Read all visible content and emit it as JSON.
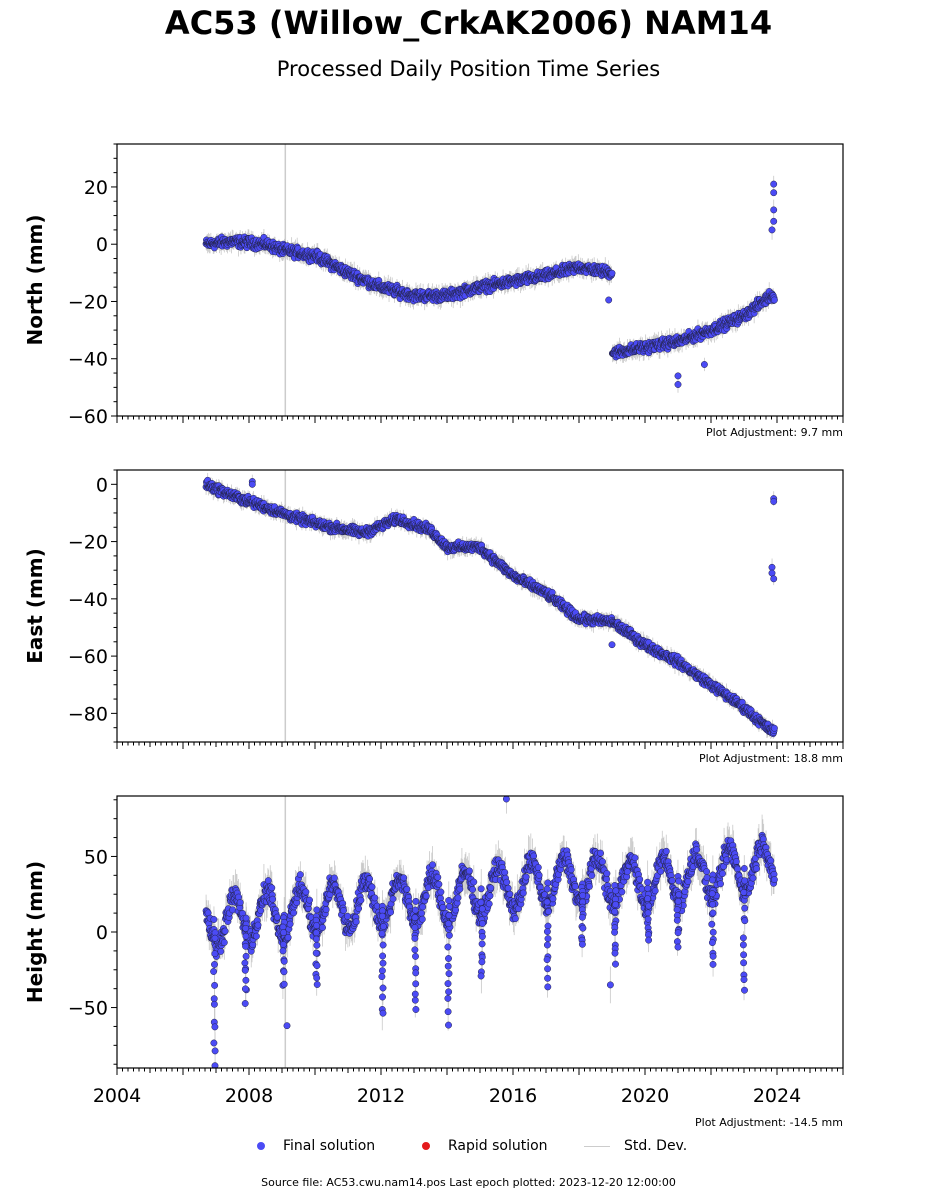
{
  "title": "AC53 (Willow_CrkAK2006) NAM14",
  "subtitle": "Processed Daily Position Time Series",
  "source": "Source file: AC53.cwu.nam14.pos  Last epoch plotted: 2023-12-20 12:00:00",
  "legend": {
    "final": "Final solution",
    "rapid": "Rapid solution",
    "std": "Std. Dev."
  },
  "colors": {
    "final": "#4b4bf5",
    "rapid": "#e41a1c",
    "std": "#cccccc"
  },
  "chart_data": [
    {
      "type": "scatter",
      "ylabel": "North (mm)",
      "adjustment": "Plot Adjustment: 9.7 mm",
      "xlim": [
        2004,
        2026
      ],
      "ylim": [
        -60,
        35
      ],
      "yticks": [
        20,
        0,
        -20,
        -40,
        -60
      ],
      "trend": [
        [
          2006.7,
          0
        ],
        [
          2007.5,
          1
        ],
        [
          2008.5,
          0
        ],
        [
          2009.0,
          -2
        ],
        [
          2010.0,
          -4
        ],
        [
          2011.0,
          -10
        ],
        [
          2012.0,
          -15
        ],
        [
          2013.0,
          -18
        ],
        [
          2014.0,
          -18
        ],
        [
          2015.0,
          -15
        ],
        [
          2016.0,
          -13
        ],
        [
          2017.0,
          -11
        ],
        [
          2018.0,
          -8
        ],
        [
          2019.0,
          -10
        ],
        [
          2019.01,
          -38
        ],
        [
          2020.0,
          -36
        ],
        [
          2021.0,
          -34
        ],
        [
          2022.0,
          -30
        ],
        [
          2023.0,
          -25
        ],
        [
          2023.8,
          -18
        ]
      ],
      "outliers": [
        [
          2023.9,
          21
        ],
        [
          2023.9,
          18
        ],
        [
          2023.9,
          12
        ],
        [
          2023.9,
          8
        ],
        [
          2023.85,
          5
        ],
        [
          2021.0,
          -46
        ],
        [
          2021.0,
          -49
        ],
        [
          2018.9,
          -19.5
        ],
        [
          2021.8,
          -42
        ]
      ],
      "noise": 1.5
    },
    {
      "type": "scatter",
      "ylabel": "East (mm)",
      "adjustment": "Plot Adjustment: 18.8 mm",
      "xlim": [
        2004,
        2026
      ],
      "ylim": [
        -90,
        5
      ],
      "yticks": [
        0,
        -20,
        -40,
        -60,
        -80
      ],
      "trend": [
        [
          2006.7,
          0
        ],
        [
          2007.5,
          -4
        ],
        [
          2008.5,
          -8
        ],
        [
          2009.5,
          -12
        ],
        [
          2010.5,
          -15
        ],
        [
          2011.5,
          -17
        ],
        [
          2012.5,
          -12
        ],
        [
          2013.5,
          -16
        ],
        [
          2014.0,
          -22
        ],
        [
          2015.0,
          -22
        ],
        [
          2016.0,
          -32
        ],
        [
          2017.0,
          -38
        ],
        [
          2018.0,
          -47
        ],
        [
          2019.0,
          -48
        ],
        [
          2020.0,
          -56
        ],
        [
          2021.0,
          -62
        ],
        [
          2022.0,
          -70
        ],
        [
          2023.0,
          -78
        ],
        [
          2023.8,
          -86
        ]
      ],
      "outliers": [
        [
          2023.9,
          -5
        ],
        [
          2023.9,
          -6
        ],
        [
          2023.85,
          -29
        ],
        [
          2023.85,
          -31
        ],
        [
          2023.9,
          -33
        ],
        [
          2019.0,
          -56
        ],
        [
          2008.1,
          1
        ],
        [
          2008.1,
          0
        ]
      ],
      "noise": 1.3
    },
    {
      "type": "scatter",
      "ylabel": "Height (mm)",
      "adjustment": "Plot Adjustment: -14.5 mm",
      "xlim": [
        2004,
        2026
      ],
      "ylim": [
        -90,
        90
      ],
      "yticks": [
        50,
        0,
        -50
      ],
      "trend": [
        [
          2006.7,
          5
        ],
        [
          2008.0,
          10
        ],
        [
          2010.0,
          15
        ],
        [
          2012.0,
          20
        ],
        [
          2014.0,
          22
        ],
        [
          2016.0,
          30
        ],
        [
          2018.0,
          35
        ],
        [
          2020.0,
          32
        ],
        [
          2022.0,
          38
        ],
        [
          2023.9,
          45
        ]
      ],
      "seasonal": 15,
      "dips": [
        [
          2006.95,
          -85
        ],
        [
          2007.9,
          -45
        ],
        [
          2009.05,
          -35
        ],
        [
          2010.05,
          -35
        ],
        [
          2012.05,
          -55
        ],
        [
          2013.05,
          -50
        ],
        [
          2014.05,
          -60
        ],
        [
          2015.05,
          -30
        ],
        [
          2017.05,
          -35
        ],
        [
          2018.1,
          -10
        ],
        [
          2019.1,
          -20
        ],
        [
          2020.1,
          -5
        ],
        [
          2021.0,
          -10
        ],
        [
          2022.05,
          -20
        ],
        [
          2023.0,
          -40
        ]
      ],
      "outliers": [
        [
          2015.8,
          88
        ],
        [
          2009.15,
          -62
        ],
        [
          2018.95,
          -35
        ]
      ],
      "noise": 6
    }
  ],
  "xticks": [
    "2004",
    "2008",
    "2012",
    "2016",
    "2020",
    "2024"
  ]
}
